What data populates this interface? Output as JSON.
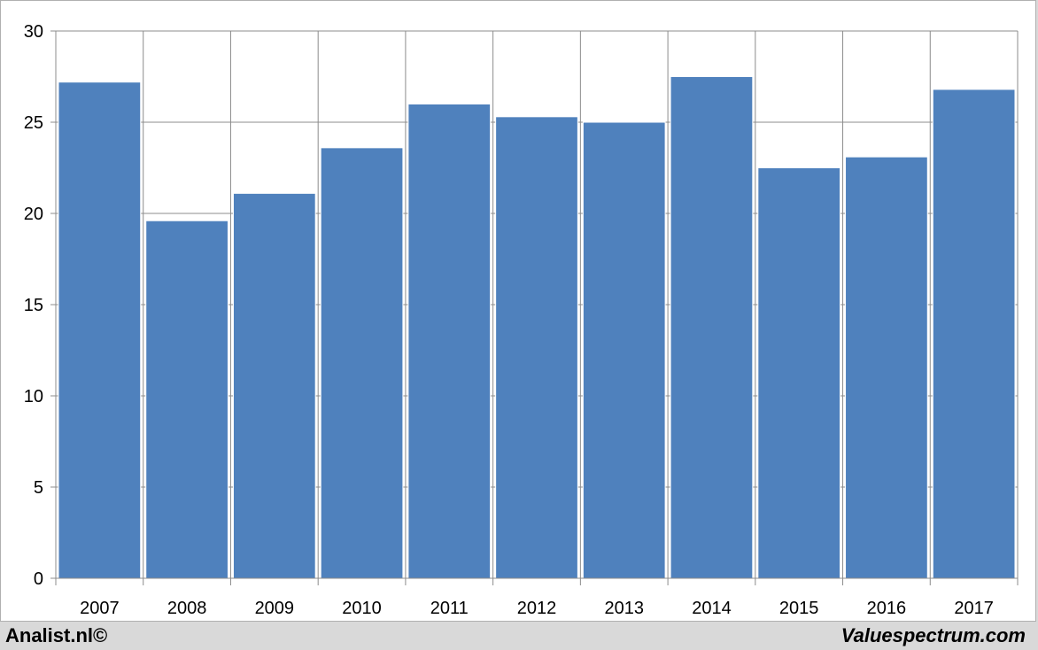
{
  "chart_data": {
    "type": "bar",
    "categories": [
      "2007",
      "2008",
      "2009",
      "2010",
      "2011",
      "2012",
      "2013",
      "2014",
      "2015",
      "2016",
      "2017"
    ],
    "values": [
      27.2,
      19.6,
      21.1,
      23.6,
      26.0,
      25.3,
      25.0,
      27.5,
      22.5,
      23.1,
      26.8
    ],
    "title": "",
    "xlabel": "",
    "ylabel": "",
    "ylim": [
      0,
      30
    ],
    "yticks": [
      0,
      5,
      10,
      15,
      20,
      25,
      30
    ],
    "grid": true,
    "legend": "none",
    "bar_color": "#4f81bd"
  },
  "footer": {
    "left": "Analist.nl©",
    "right": "Valuespectrum.com"
  }
}
